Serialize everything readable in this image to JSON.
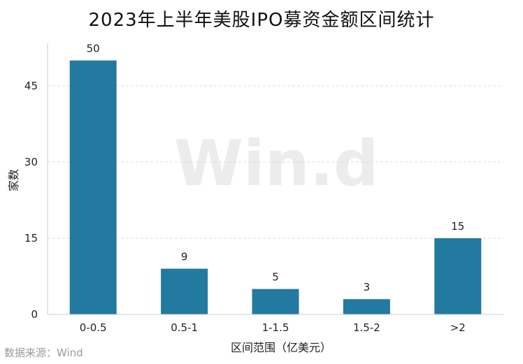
{
  "title": "2023年上半年美股IPO募资金额区间统计",
  "source": "数据来源：Wind",
  "watermark": "Win.d",
  "chart_data": {
    "type": "bar",
    "categories": [
      "0-0.5",
      "0.5-1",
      "1-1.5",
      "1.5-2",
      ">2"
    ],
    "values": [
      50,
      9,
      5,
      3,
      15
    ],
    "data_labels": [
      "50",
      "9",
      "5",
      "3",
      "15"
    ],
    "xlabel": "区间范围（亿美元）",
    "ylabel": "家数",
    "ylim": [
      0,
      52
    ],
    "yticks": [
      0,
      15,
      30,
      45
    ],
    "ytick_labels": [
      "0",
      "15",
      "30",
      "45"
    ],
    "grid": true,
    "bar_color": "#237aa0",
    "grid_color": "#dddddd"
  }
}
